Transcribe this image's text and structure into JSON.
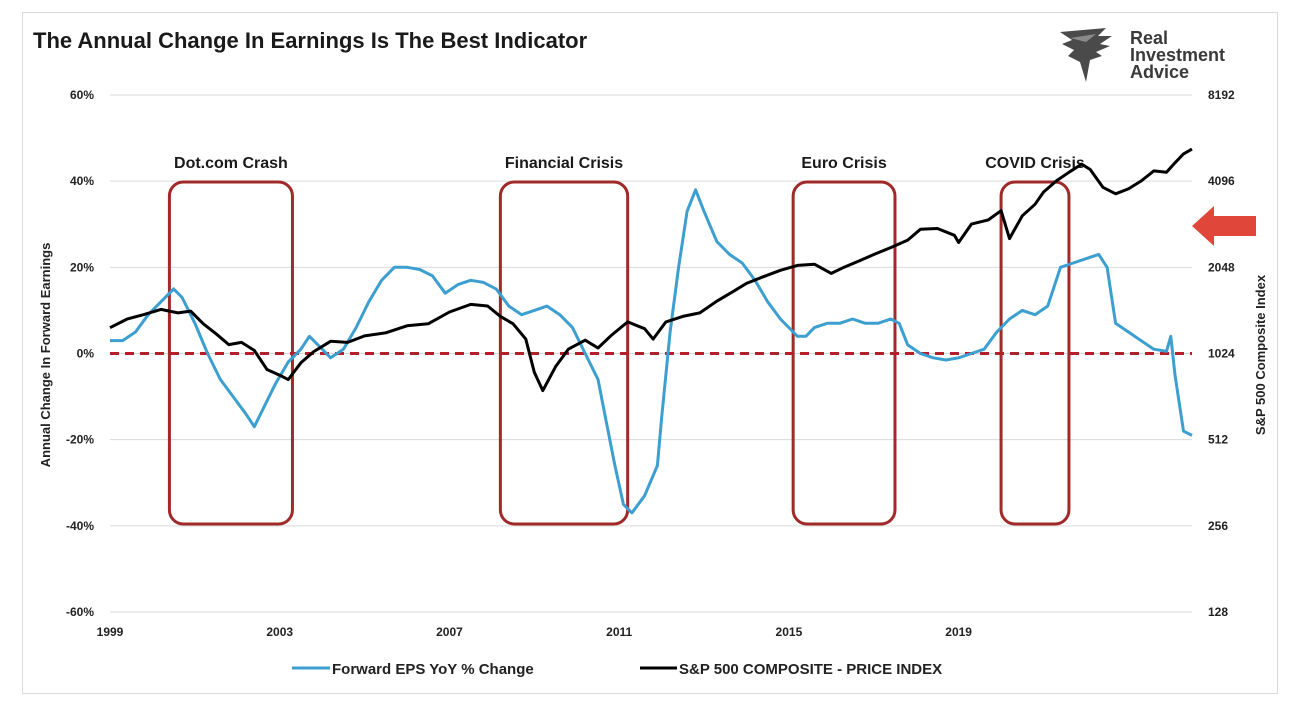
{
  "header": {
    "title": "The Annual Change In Earnings Is The Best Indicator",
    "brand_lines": [
      "Real",
      "Investment",
      "Advice"
    ],
    "logo_icon": "eagle-logo-icon"
  },
  "colors": {
    "eps_line": "#3d9fd0",
    "spx_line": "#000000",
    "zero_line": "#b3202a",
    "crisis_box": "#a02a2a",
    "arrow": "#e0473a",
    "grid": "#d9d9d9"
  },
  "chart_data": {
    "type": "line",
    "title": "The Annual Change In Earnings Is The Best Indicator",
    "xlabel": "",
    "ylabel": "Annual Change In Forward Earnings",
    "y2label": "S&P 500  Composite Index",
    "x_range": [
      1999,
      2024.5
    ],
    "x_ticks": [
      "1999",
      "2003",
      "2007",
      "2011",
      "2015",
      "2019"
    ],
    "x_tick_values": [
      1999,
      2003,
      2007,
      2011,
      2015,
      2019
    ],
    "ylim": [
      -60,
      60
    ],
    "y_ticks": [
      "60%",
      "40%",
      "20%",
      "0%",
      "-20%",
      "-40%",
      "-60%"
    ],
    "y_tick_values": [
      60,
      40,
      20,
      0,
      -20,
      -40,
      -60
    ],
    "y2_scale": "log2",
    "y2lim": [
      128,
      8192
    ],
    "y2_ticks": [
      "8192",
      "4096",
      "2048",
      "1024",
      "512",
      "256",
      "128"
    ],
    "y2_tick_values": [
      8192,
      4096,
      2048,
      1024,
      512,
      256,
      128
    ],
    "grid": "horizontal",
    "legend_position": "bottom",
    "reference_line": {
      "y": 0,
      "style": "dashed"
    },
    "annotations": [
      {
        "label": "Dot.com Crash",
        "x_start": 2000.4,
        "x_end": 2003.3
      },
      {
        "label": "Financial Crisis",
        "x_start": 2008.2,
        "x_end": 2011.2
      },
      {
        "label": "Euro Crisis",
        "x_start": 2015.1,
        "x_end": 2017.5
      },
      {
        "label": "COVID Crisis",
        "x_start": 2020.0,
        "x_end": 2021.6
      }
    ],
    "series": [
      {
        "name": "Forward EPS YoY % Change",
        "axis": "left",
        "points": [
          [
            1999,
            3
          ],
          [
            1999.3,
            3
          ],
          [
            1999.6,
            5
          ],
          [
            1999.9,
            9
          ],
          [
            2000.2,
            12
          ],
          [
            2000.5,
            15
          ],
          [
            2000.7,
            13
          ],
          [
            2001.0,
            7
          ],
          [
            2001.3,
            0
          ],
          [
            2001.6,
            -6
          ],
          [
            2001.9,
            -10
          ],
          [
            2002.2,
            -14
          ],
          [
            2002.4,
            -17
          ],
          [
            2002.6,
            -13
          ],
          [
            2002.9,
            -7
          ],
          [
            2003.2,
            -2
          ],
          [
            2003.5,
            1
          ],
          [
            2003.7,
            4
          ],
          [
            2004.0,
            1
          ],
          [
            2004.2,
            -1
          ],
          [
            2004.5,
            1
          ],
          [
            2004.8,
            6
          ],
          [
            2005.1,
            12
          ],
          [
            2005.4,
            17
          ],
          [
            2005.7,
            20
          ],
          [
            2006.0,
            20
          ],
          [
            2006.3,
            19.5
          ],
          [
            2006.6,
            18
          ],
          [
            2006.9,
            14
          ],
          [
            2007.2,
            16
          ],
          [
            2007.5,
            17
          ],
          [
            2007.8,
            16.5
          ],
          [
            2008.1,
            15
          ],
          [
            2008.4,
            11
          ],
          [
            2008.7,
            9
          ],
          [
            2009.0,
            10
          ],
          [
            2009.3,
            11
          ],
          [
            2009.6,
            9
          ],
          [
            2009.9,
            6
          ],
          [
            2010.2,
            0
          ],
          [
            2010.5,
            -6
          ],
          [
            2010.7,
            -16
          ],
          [
            2010.9,
            -26
          ],
          [
            2011.1,
            -35
          ],
          [
            2011.3,
            -37
          ],
          [
            2011.6,
            -33
          ],
          [
            2011.9,
            -26
          ],
          [
            2012.0,
            -15
          ],
          [
            2012.2,
            5
          ],
          [
            2012.4,
            20
          ],
          [
            2012.6,
            33
          ],
          [
            2012.8,
            38
          ],
          [
            2013.0,
            33
          ],
          [
            2013.3,
            26
          ],
          [
            2013.6,
            23
          ],
          [
            2013.9,
            21
          ],
          [
            2014.2,
            17
          ],
          [
            2014.5,
            12
          ],
          [
            2014.8,
            8
          ],
          [
            2015.0,
            6
          ],
          [
            2015.2,
            4
          ],
          [
            2015.4,
            4
          ],
          [
            2015.6,
            6
          ],
          [
            2015.9,
            7
          ],
          [
            2016.2,
            7
          ],
          [
            2016.5,
            8
          ],
          [
            2016.8,
            7
          ],
          [
            2017.1,
            7
          ],
          [
            2017.4,
            8
          ],
          [
            2017.6,
            7
          ],
          [
            2017.8,
            2
          ],
          [
            2018.1,
            0
          ],
          [
            2018.4,
            -1
          ],
          [
            2018.7,
            -1.5
          ],
          [
            2019.0,
            -1
          ],
          [
            2019.3,
            0
          ],
          [
            2019.6,
            1
          ],
          [
            2019.9,
            5
          ],
          [
            2020.2,
            8
          ],
          [
            2020.5,
            10
          ],
          [
            2020.8,
            9
          ],
          [
            2021.1,
            11
          ],
          [
            2021.4,
            20
          ],
          [
            2021.7,
            21
          ],
          [
            2022.0,
            22
          ],
          [
            2022.3,
            23
          ],
          [
            2022.5,
            20
          ],
          [
            2022.7,
            7
          ],
          [
            2023.0,
            5
          ],
          [
            2023.3,
            3
          ],
          [
            2023.6,
            1
          ],
          [
            2023.9,
            0.5
          ],
          [
            2024.0,
            4
          ],
          [
            2024.1,
            -5
          ],
          [
            2024.3,
            -18
          ],
          [
            2024.5,
            -19
          ]
        ]
      },
      {
        "name": "S&P 500 COMPOSITE - PRICE INDEX",
        "axis": "right",
        "points": [
          [
            1999,
            1260
          ],
          [
            1999.4,
            1350
          ],
          [
            1999.8,
            1400
          ],
          [
            2000.2,
            1460
          ],
          [
            2000.6,
            1420
          ],
          [
            2000.9,
            1440
          ],
          [
            2001.2,
            1300
          ],
          [
            2001.5,
            1200
          ],
          [
            2001.8,
            1100
          ],
          [
            2002.1,
            1120
          ],
          [
            2002.4,
            1050
          ],
          [
            2002.7,
            900
          ],
          [
            2003.0,
            860
          ],
          [
            2003.2,
            830
          ],
          [
            2003.5,
            950
          ],
          [
            2003.8,
            1040
          ],
          [
            2004.2,
            1130
          ],
          [
            2004.6,
            1120
          ],
          [
            2005.0,
            1180
          ],
          [
            2005.5,
            1210
          ],
          [
            2006.0,
            1280
          ],
          [
            2006.5,
            1300
          ],
          [
            2007.0,
            1430
          ],
          [
            2007.5,
            1520
          ],
          [
            2007.9,
            1500
          ],
          [
            2008.2,
            1380
          ],
          [
            2008.5,
            1300
          ],
          [
            2008.8,
            1150
          ],
          [
            2009.0,
            880
          ],
          [
            2009.2,
            760
          ],
          [
            2009.5,
            920
          ],
          [
            2009.8,
            1060
          ],
          [
            2010.2,
            1140
          ],
          [
            2010.5,
            1070
          ],
          [
            2010.8,
            1180
          ],
          [
            2011.2,
            1320
          ],
          [
            2011.6,
            1250
          ],
          [
            2011.8,
            1150
          ],
          [
            2012.1,
            1320
          ],
          [
            2012.5,
            1380
          ],
          [
            2012.9,
            1420
          ],
          [
            2013.3,
            1560
          ],
          [
            2013.7,
            1690
          ],
          [
            2014.0,
            1800
          ],
          [
            2014.4,
            1900
          ],
          [
            2014.8,
            2000
          ],
          [
            2015.2,
            2080
          ],
          [
            2015.6,
            2100
          ],
          [
            2016.0,
            1950
          ],
          [
            2016.3,
            2050
          ],
          [
            2016.7,
            2170
          ],
          [
            2017.0,
            2270
          ],
          [
            2017.4,
            2400
          ],
          [
            2017.8,
            2550
          ],
          [
            2018.1,
            2780
          ],
          [
            2018.5,
            2800
          ],
          [
            2018.9,
            2650
          ],
          [
            2019.0,
            2500
          ],
          [
            2019.3,
            2900
          ],
          [
            2019.7,
            3000
          ],
          [
            2020.0,
            3230
          ],
          [
            2020.2,
            2580
          ],
          [
            2020.5,
            3100
          ],
          [
            2020.8,
            3400
          ],
          [
            2021.0,
            3750
          ],
          [
            2021.3,
            4100
          ],
          [
            2021.6,
            4400
          ],
          [
            2021.9,
            4700
          ],
          [
            2022.1,
            4500
          ],
          [
            2022.4,
            3900
          ],
          [
            2022.7,
            3700
          ],
          [
            2023.0,
            3850
          ],
          [
            2023.3,
            4100
          ],
          [
            2023.6,
            4450
          ],
          [
            2023.9,
            4400
          ],
          [
            2024.1,
            4750
          ],
          [
            2024.3,
            5100
          ],
          [
            2024.5,
            5300
          ]
        ]
      }
    ]
  },
  "legend": {
    "eps_label": "Forward EPS YoY % Change",
    "spx_label": "S&P 500 COMPOSITE - PRICE INDEX"
  }
}
